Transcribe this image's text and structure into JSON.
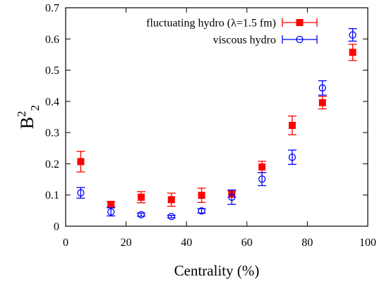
{
  "chart_data": {
    "type": "scatter",
    "xlabel": "Centrality (%)",
    "ylabel_base": "B",
    "ylabel_sup": "2",
    "ylabel_sub": "2",
    "xlim": [
      0,
      100
    ],
    "ylim": [
      0,
      0.7
    ],
    "xticks": [
      0,
      20,
      40,
      60,
      80,
      100
    ],
    "yticks": [
      0,
      0.1,
      0.2,
      0.3,
      0.4,
      0.5,
      0.6,
      0.7
    ],
    "xtick_labels": [
      "0",
      "20",
      "40",
      "60",
      "80",
      "100"
    ],
    "ytick_labels": [
      "0",
      "0.1",
      "0.2",
      "0.3",
      "0.4",
      "0.5",
      "0.6",
      "0.7"
    ],
    "grid": false,
    "legend_position": "top-right",
    "series": [
      {
        "name": "fluctuating hydro (λ=1.5 fm)",
        "color": "#ff0000",
        "marker": "filled-square",
        "x": [
          5,
          15,
          25,
          35,
          45,
          55,
          65,
          75,
          85,
          95
        ],
        "y": [
          0.207,
          0.07,
          0.093,
          0.085,
          0.099,
          0.103,
          0.19,
          0.323,
          0.396,
          0.557
        ],
        "err": [
          0.033,
          0.008,
          0.018,
          0.021,
          0.023,
          0.01,
          0.018,
          0.03,
          0.02,
          0.026
        ]
      },
      {
        "name": "viscous hydro",
        "color": "#0000ff",
        "marker": "open-circle",
        "x": [
          5,
          15,
          25,
          35,
          45,
          55,
          65,
          75,
          85,
          95
        ],
        "y": [
          0.107,
          0.046,
          0.037,
          0.031,
          0.049,
          0.093,
          0.151,
          0.221,
          0.443,
          0.613
        ],
        "err": [
          0.017,
          0.013,
          0.005,
          0.004,
          0.007,
          0.023,
          0.021,
          0.023,
          0.023,
          0.02
        ]
      }
    ]
  }
}
